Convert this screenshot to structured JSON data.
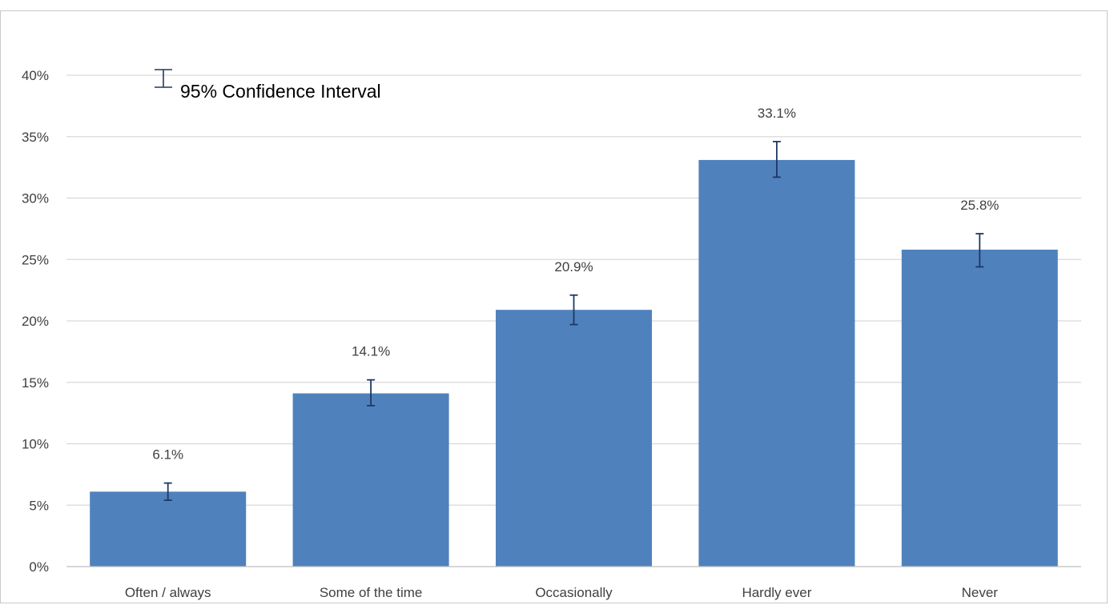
{
  "colors": {
    "bar": "#4f81bd",
    "error_bar": "#1f3864",
    "gridline": "#d9d9d9",
    "axis": "#bfbfbf",
    "caption": "#4a86c5"
  },
  "legend": {
    "icon": "error-bar-icon",
    "label": "95% Confidence Interval"
  },
  "chart_data": {
    "type": "bar",
    "title": "",
    "xlabel": "",
    "ylabel": "",
    "categories": [
      "Often / always",
      "Some of the time",
      "Occasionally",
      "Hardly ever",
      "Never"
    ],
    "values": [
      6.1,
      14.1,
      20.9,
      33.1,
      25.8
    ],
    "data_labels": [
      "6.1%",
      "14.1%",
      "20.9%",
      "33.1%",
      "25.8%"
    ],
    "ci_lower": [
      5.4,
      13.1,
      19.7,
      31.7,
      24.4
    ],
    "ci_upper": [
      6.8,
      15.2,
      22.1,
      34.6,
      27.1
    ],
    "ylim": [
      0,
      40
    ],
    "yticks": [
      0,
      5,
      10,
      15,
      20,
      25,
      30,
      35,
      40
    ],
    "ytick_labels": [
      "0%",
      "5%",
      "10%",
      "15%",
      "20%",
      "25%",
      "30%",
      "35%",
      "40%"
    ],
    "grid": true,
    "legend_position": "top-left"
  }
}
